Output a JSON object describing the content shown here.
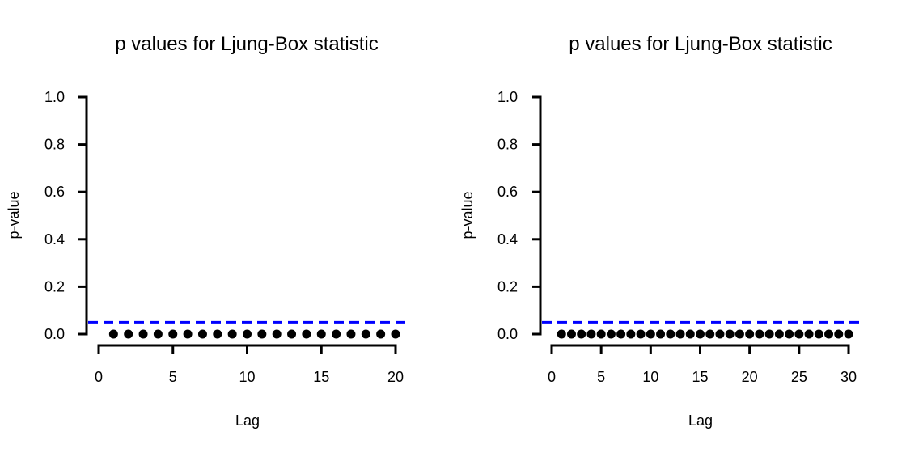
{
  "chart_data": [
    {
      "type": "scatter",
      "title": "p values for Ljung-Box statistic",
      "xlabel": "Lag",
      "ylabel": "p-value",
      "xlim": [
        0,
        20
      ],
      "ylim": [
        0,
        1
      ],
      "xticks": [
        0,
        5,
        10,
        15,
        20
      ],
      "yticks": [
        "0.0",
        "0.2",
        "0.4",
        "0.6",
        "0.8",
        "1.0"
      ],
      "x": [
        1,
        2,
        3,
        4,
        5,
        6,
        7,
        8,
        9,
        10,
        11,
        12,
        13,
        14,
        15,
        16,
        17,
        18,
        19,
        20
      ],
      "y": [
        0,
        0,
        0,
        0,
        0,
        0,
        0,
        0,
        0,
        0,
        0,
        0,
        0,
        0,
        0,
        0,
        0,
        0,
        0,
        0
      ],
      "reference_line": {
        "y": 0.05,
        "style": "dashed",
        "color": "#0000ff"
      },
      "point_color": "#000000",
      "grid": false
    },
    {
      "type": "scatter",
      "title": "p values for Ljung-Box statistic",
      "xlabel": "Lag",
      "ylabel": "p-value",
      "xlim": [
        0,
        30
      ],
      "ylim": [
        0,
        1
      ],
      "xticks": [
        0,
        5,
        10,
        15,
        20,
        25,
        30
      ],
      "yticks": [
        "0.0",
        "0.2",
        "0.4",
        "0.6",
        "0.8",
        "1.0"
      ],
      "x": [
        1,
        2,
        3,
        4,
        5,
        6,
        7,
        8,
        9,
        10,
        11,
        12,
        13,
        14,
        15,
        16,
        17,
        18,
        19,
        20,
        21,
        22,
        23,
        24,
        25,
        26,
        27,
        28,
        29,
        30
      ],
      "y": [
        0,
        0,
        0,
        0,
        0,
        0,
        0,
        0,
        0,
        0,
        0,
        0,
        0,
        0,
        0,
        0,
        0,
        0,
        0,
        0,
        0,
        0,
        0,
        0,
        0,
        0,
        0,
        0,
        0,
        0
      ],
      "reference_line": {
        "y": 0.05,
        "style": "dashed",
        "color": "#0000ff"
      },
      "point_color": "#000000",
      "grid": false
    }
  ]
}
